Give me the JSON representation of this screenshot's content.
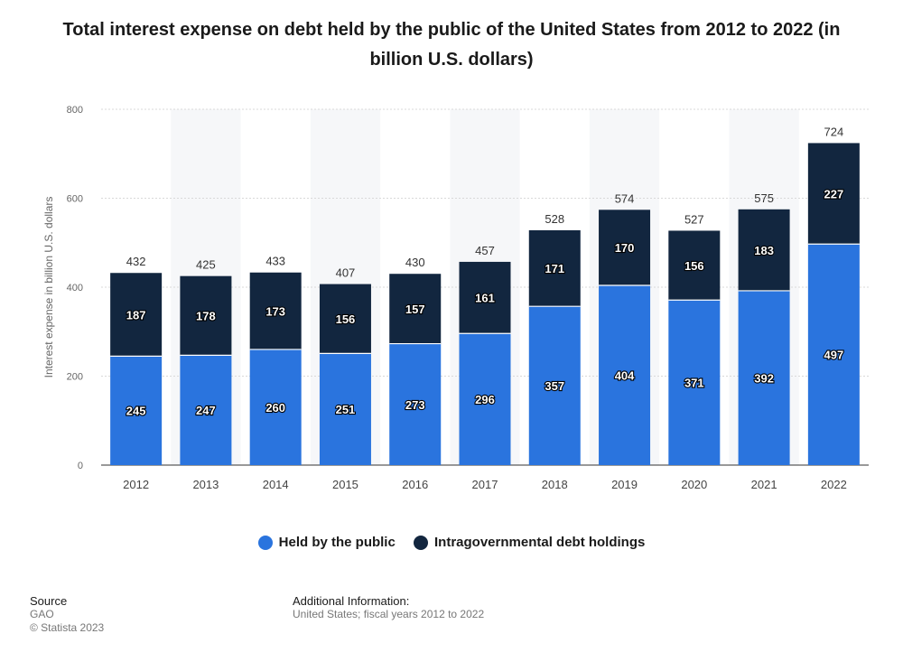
{
  "title": "Total interest expense on debt held by the public of the United States from 2012 to 2022 (in billion U.S. dollars)",
  "legend": {
    "public_label": "Held by the public",
    "intragov_label": "Intragovernmental debt holdings"
  },
  "source": {
    "heading": "Source",
    "name": "GAO",
    "copyright": "© Statista 2023"
  },
  "additional_info": {
    "heading": "Additional Information:",
    "text": "United States; fiscal years 2012 to 2022"
  },
  "colors": {
    "public": "#2a74de",
    "intragov": "#12263f",
    "band": "#f6f7f9",
    "grid": "#d9d9d9"
  },
  "chart_data": {
    "type": "bar",
    "stacked": true,
    "title": "Total interest expense on debt held by the public of the United States from 2012 to 2022 (in billion U.S. dollars)",
    "xlabel": "",
    "ylabel": "Interest expense in billion U.S. dollars",
    "ylim": [
      0,
      800
    ],
    "yticks": [
      0,
      200,
      400,
      600,
      800
    ],
    "grid": true,
    "legend_position": "bottom",
    "categories": [
      "2012",
      "2013",
      "2014",
      "2015",
      "2016",
      "2017",
      "2018",
      "2019",
      "2020",
      "2021",
      "2022"
    ],
    "series": [
      {
        "name": "Held by the public",
        "values": [
          245,
          247,
          260,
          251,
          273,
          296,
          357,
          404,
          371,
          392,
          497
        ]
      },
      {
        "name": "Intragovernmental debt holdings",
        "values": [
          187,
          178,
          173,
          156,
          157,
          161,
          171,
          170,
          156,
          183,
          227
        ]
      }
    ],
    "totals": [
      432,
      425,
      433,
      407,
      430,
      457,
      528,
      574,
      527,
      575,
      724
    ]
  }
}
